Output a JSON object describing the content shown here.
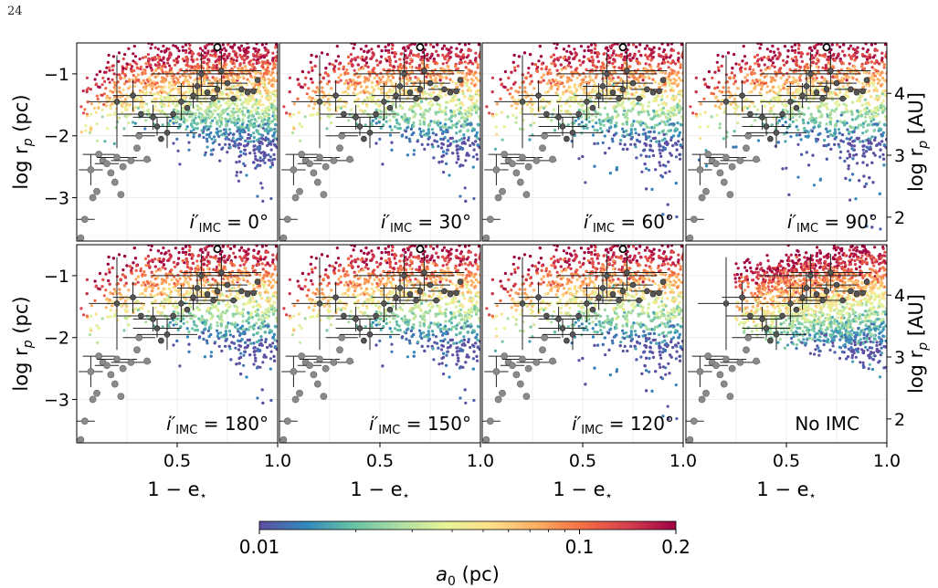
{
  "page_number": "24",
  "chart_data": {
    "type": "scatter",
    "layout": "2x4 panel grid sharing axes",
    "xlabel": "1 − e",
    "xlabel_subscript": "⋆",
    "ylabel_left": "log r",
    "ylabel_left_subscript": "p",
    "ylabel_left_unit": " (pc)",
    "ylabel_right": "log r",
    "ylabel_right_subscript": "p",
    "ylabel_right_unit": " [AU]",
    "xlim": [
      0.0,
      1.0
    ],
    "ylim": [
      -3.7,
      -0.5
    ],
    "x_ticks": [
      0.5,
      1.0
    ],
    "x_tick_labels": [
      "0.5",
      "1.0"
    ],
    "y_ticks_left": [
      -3,
      -2,
      -1
    ],
    "y_tick_labels_left": [
      "−3",
      "−2",
      "−1"
    ],
    "y_ticks_right_au": [
      2,
      3,
      4
    ],
    "y_tick_labels_right": [
      "2",
      "3",
      "4"
    ],
    "grid": true,
    "panels": [
      {
        "label_prefix": "i′",
        "label_sub": "IMC",
        "label_value": " = 0°",
        "inclination_deg": 0,
        "row": 0,
        "col": 0,
        "open_marker": true
      },
      {
        "label_prefix": "i′",
        "label_sub": "IMC",
        "label_value": " = 30°",
        "inclination_deg": 30,
        "row": 0,
        "col": 1,
        "open_marker": true
      },
      {
        "label_prefix": "i′",
        "label_sub": "IMC",
        "label_value": " = 60°",
        "inclination_deg": 60,
        "row": 0,
        "col": 2,
        "open_marker": true
      },
      {
        "label_prefix": "i′",
        "label_sub": "IMC",
        "label_value": " = 90°",
        "inclination_deg": 90,
        "row": 0,
        "col": 3,
        "open_marker": true
      },
      {
        "label_prefix": "i′",
        "label_sub": "IMC",
        "label_value": " = 180°",
        "inclination_deg": 180,
        "row": 1,
        "col": 0,
        "open_marker": true
      },
      {
        "label_prefix": "i′",
        "label_sub": "IMC",
        "label_value": " = 150°",
        "inclination_deg": 150,
        "row": 1,
        "col": 1,
        "open_marker": true
      },
      {
        "label_prefix": "i′",
        "label_sub": "IMC",
        "label_value": " = 120°",
        "inclination_deg": 120,
        "row": 1,
        "col": 2,
        "open_marker": true
      },
      {
        "label_prefix": "",
        "label_sub": "",
        "label_value": "No IMC",
        "inclination_deg": null,
        "row": 1,
        "col": 3,
        "open_marker": false
      }
    ],
    "observed_points": [
      {
        "x": 0.02,
        "y": -3.65,
        "xerr": 0.0,
        "yerr": 0.0,
        "gray": true
      },
      {
        "x": 0.04,
        "y": -3.35,
        "xerr": 0.05,
        "yerr": 0.0,
        "gray": true
      },
      {
        "x": 0.07,
        "y": -2.55,
        "xerr": 0.06,
        "yerr": 0.25,
        "gray": true
      },
      {
        "x": 0.08,
        "y": -3.0,
        "xerr": 0.0,
        "yerr": 0.0,
        "gray": true
      },
      {
        "x": 0.1,
        "y": -2.9,
        "xerr": 0.0,
        "yerr": 0.0,
        "gray": true
      },
      {
        "x": 0.11,
        "y": -2.3,
        "xerr": 0.08,
        "yerr": 0.0,
        "gray": true
      },
      {
        "x": 0.13,
        "y": -2.4,
        "xerr": 0.0,
        "yerr": 0.0,
        "gray": true
      },
      {
        "x": 0.15,
        "y": -2.45,
        "xerr": 0.06,
        "yerr": 0.0,
        "gray": true
      },
      {
        "x": 0.17,
        "y": -2.6,
        "xerr": 0.0,
        "yerr": 0.0,
        "gray": true
      },
      {
        "x": 0.19,
        "y": -2.75,
        "xerr": 0.0,
        "yerr": 0.0,
        "gray": true
      },
      {
        "x": 0.2,
        "y": -2.35,
        "xerr": 0.1,
        "yerr": 0.0,
        "gray": true
      },
      {
        "x": 0.22,
        "y": -2.95,
        "xerr": 0.0,
        "yerr": 0.0,
        "gray": true
      },
      {
        "x": 0.23,
        "y": -2.5,
        "xerr": 0.0,
        "yerr": 0.0,
        "gray": true
      },
      {
        "x": 0.27,
        "y": -2.4,
        "xerr": 0.1,
        "yerr": 0.0,
        "gray": true
      },
      {
        "x": 0.3,
        "y": -2.2,
        "xerr": 0.0,
        "yerr": 0.0,
        "gray": true
      },
      {
        "x": 0.31,
        "y": -2.0,
        "xerr": 0.08,
        "yerr": 0.0,
        "gray": true
      },
      {
        "x": 0.35,
        "y": -2.38,
        "xerr": 0.0,
        "yerr": 0.0,
        "gray": true
      },
      {
        "x": 0.2,
        "y": -1.45,
        "xerr": 0.14,
        "yerr": 0.75,
        "gray": false
      },
      {
        "x": 0.28,
        "y": -1.35,
        "xerr": 0.1,
        "yerr": 0.25,
        "gray": false
      },
      {
        "x": 0.32,
        "y": -1.65,
        "xerr": 0.12,
        "yerr": 0.0,
        "gray": false
      },
      {
        "x": 0.38,
        "y": -1.7,
        "xerr": 0.1,
        "yerr": 0.2,
        "gray": false
      },
      {
        "x": 0.4,
        "y": -1.85,
        "xerr": 0.12,
        "yerr": 0.15,
        "gray": false
      },
      {
        "x": 0.45,
        "y": -1.95,
        "xerr": 0.15,
        "yerr": 0.25,
        "gray": false
      },
      {
        "x": 0.42,
        "y": -2.05,
        "xerr": 0.0,
        "yerr": 0.0,
        "gray": false
      },
      {
        "x": 0.48,
        "y": -1.65,
        "xerr": 0.1,
        "yerr": 0.0,
        "gray": false
      },
      {
        "x": 0.52,
        "y": -1.45,
        "xerr": 0.15,
        "yerr": 0.3,
        "gray": false
      },
      {
        "x": 0.55,
        "y": -1.55,
        "xerr": 0.0,
        "yerr": 0.0,
        "gray": false
      },
      {
        "x": 0.58,
        "y": -1.35,
        "xerr": 0.12,
        "yerr": 0.2,
        "gray": false
      },
      {
        "x": 0.6,
        "y": -1.2,
        "xerr": 0.1,
        "yerr": 0.25,
        "gray": false
      },
      {
        "x": 0.62,
        "y": -1.0,
        "xerr": 0.25,
        "yerr": 0.35,
        "gray": false
      },
      {
        "x": 0.65,
        "y": -1.3,
        "xerr": 0.0,
        "yerr": 0.0,
        "gray": false
      },
      {
        "x": 0.68,
        "y": -1.4,
        "xerr": 0.12,
        "yerr": 0.0,
        "gray": false
      },
      {
        "x": 0.7,
        "y": -1.25,
        "xerr": 0.0,
        "yerr": 0.15,
        "gray": false
      },
      {
        "x": 0.72,
        "y": -0.95,
        "xerr": 0.2,
        "yerr": 0.3,
        "gray": false
      },
      {
        "x": 0.75,
        "y": -1.15,
        "xerr": 0.1,
        "yerr": 0.0,
        "gray": false
      },
      {
        "x": 0.78,
        "y": -1.4,
        "xerr": 0.0,
        "yerr": 0.0,
        "gray": false
      },
      {
        "x": 0.82,
        "y": -1.25,
        "xerr": 0.08,
        "yerr": 0.0,
        "gray": false
      },
      {
        "x": 0.85,
        "y": -1.3,
        "xerr": 0.0,
        "yerr": 0.0,
        "gray": false
      },
      {
        "x": 0.88,
        "y": -1.28,
        "xerr": 0.0,
        "yerr": 0.0,
        "gray": false
      },
      {
        "x": 0.9,
        "y": -1.1,
        "xerr": 0.0,
        "yerr": 0.0,
        "gray": false
      }
    ],
    "open_marker_point": {
      "x": 0.7,
      "y": -0.57
    },
    "simulation": {
      "description": "colored scatter of simulated systems, color by initial separation",
      "points_per_panel": 1800
    },
    "colorbar": {
      "label": "a",
      "label_subscript": "0",
      "label_unit": " (pc)",
      "scale": "log",
      "range": [
        0.01,
        0.2
      ],
      "tick_values": [
        0.01,
        0.1,
        0.2
      ],
      "tick_labels": [
        "0.01",
        "0.1",
        "0.2"
      ],
      "colormap": "Spectral_r",
      "colors": [
        "#5e4fa2",
        "#3288bd",
        "#66c2a5",
        "#abdda4",
        "#e6f598",
        "#fee08b",
        "#fdae61",
        "#f46d43",
        "#d53e4f",
        "#9e0142"
      ]
    }
  }
}
